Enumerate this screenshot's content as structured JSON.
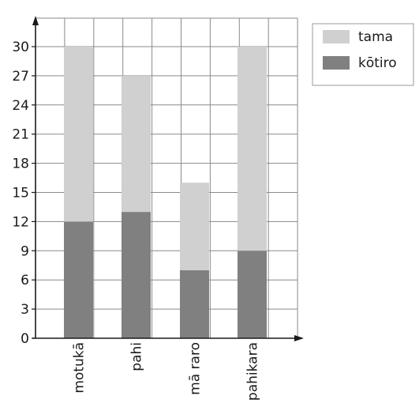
{
  "chart_data": {
    "type": "bar",
    "stacked": true,
    "title": "",
    "xlabel": "",
    "ylabel": "",
    "categories": [
      "motukā",
      "pahi",
      "mā raro",
      "pahikara"
    ],
    "series": [
      {
        "name": "kōtiro",
        "values": [
          12,
          13,
          7,
          9
        ],
        "color": "#808080"
      },
      {
        "name": "tama",
        "values": [
          18,
          14,
          9,
          21
        ],
        "color": "#d0d0d0"
      }
    ],
    "ylim": [
      0,
      30
    ],
    "yticks": [
      0,
      3,
      6,
      9,
      12,
      15,
      18,
      21,
      24,
      27,
      30
    ],
    "grid": true,
    "legend_position": "top-right",
    "legend_order": [
      "tama",
      "kōtiro"
    ]
  }
}
